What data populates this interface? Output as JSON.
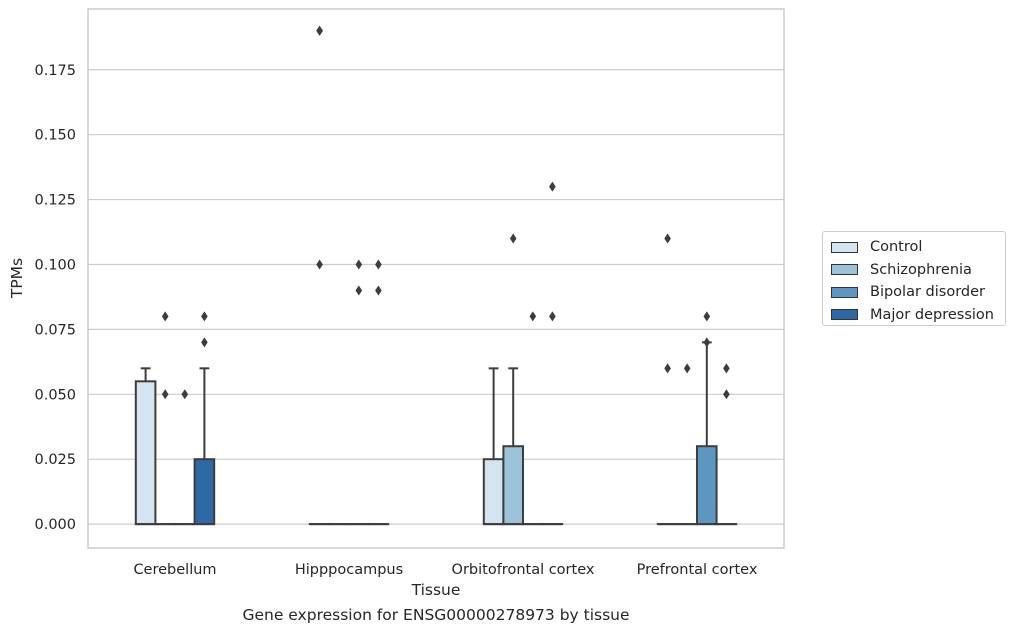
{
  "chart_data": {
    "type": "box",
    "caption": "Gene expression for ENSG00000278973 by tissue",
    "xlabel": "Tissue",
    "ylabel": "TPMs",
    "ylim": [
      -0.0092,
      0.1984
    ],
    "yticks": [
      "0.000",
      "0.025",
      "0.050",
      "0.075",
      "0.100",
      "0.125",
      "0.150",
      "0.175"
    ],
    "ytick_values": [
      0,
      0.025,
      0.05,
      0.075,
      0.1,
      0.125,
      0.15,
      0.175
    ],
    "grid": "horizontal",
    "legend_position": "center-right",
    "categories": [
      "Cerebellum",
      "Hipppocampus",
      "Orbitofrontal cortex",
      "Prefrontal cortex"
    ],
    "series": [
      {
        "name": "Control",
        "color": "#d4e4f1",
        "boxes": [
          {
            "q1": 0,
            "median": 0,
            "q3": 0.055,
            "whisker_low": 0,
            "whisker_high": 0.06,
            "outliers": []
          },
          {
            "q1": 0,
            "median": 0,
            "q3": 0,
            "whisker_low": 0,
            "whisker_high": 0,
            "outliers": [
              0.19,
              0.19,
              0.1
            ]
          },
          {
            "q1": 0,
            "median": 0,
            "q3": 0.025,
            "whisker_low": 0,
            "whisker_high": 0.06,
            "outliers": []
          },
          {
            "q1": 0,
            "median": 0,
            "q3": 0,
            "whisker_low": 0,
            "whisker_high": 0,
            "outliers": [
              0.11,
              0.06
            ]
          }
        ]
      },
      {
        "name": "Schizophrenia",
        "color": "#9bc2d8",
        "boxes": [
          {
            "q1": 0,
            "median": 0,
            "q3": 0,
            "whisker_low": 0,
            "whisker_high": 0,
            "outliers": [
              0.08,
              0.05
            ]
          },
          {
            "q1": 0,
            "median": 0,
            "q3": 0,
            "whisker_low": 0,
            "whisker_high": 0,
            "outliers": []
          },
          {
            "q1": 0,
            "median": 0,
            "q3": 0.03,
            "whisker_low": 0,
            "whisker_high": 0.06,
            "outliers": [
              0.11
            ]
          },
          {
            "q1": 0,
            "median": 0,
            "q3": 0,
            "whisker_low": 0,
            "whisker_high": 0,
            "outliers": []
          }
        ]
      },
      {
        "name": "Bipolar disorder",
        "color": "#5b97c0",
        "boxes": [
          {
            "q1": 0,
            "median": 0,
            "q3": 0,
            "whisker_low": 0,
            "whisker_high": 0,
            "outliers": [
              0.05
            ]
          },
          {
            "q1": 0,
            "median": 0,
            "q3": 0,
            "whisker_low": 0,
            "whisker_high": 0,
            "outliers": [
              0.09
            ]
          },
          {
            "q1": 0,
            "median": 0,
            "q3": 0,
            "whisker_low": 0,
            "whisker_high": 0,
            "outliers": [
              0.08
            ]
          },
          {
            "q1": 0,
            "median": 0,
            "q3": 0.03,
            "whisker_low": 0,
            "whisker_high": 0.07,
            "outliers": [
              0.08
            ]
          }
        ]
      },
      {
        "name": "Major depression",
        "color": "#2c6aa6",
        "boxes": [
          {
            "q1": 0,
            "median": 0,
            "q3": 0.025,
            "whisker_low": 0,
            "whisker_high": 0.06,
            "outliers": [
              0.08,
              0.07
            ]
          },
          {
            "q1": 0,
            "median": 0,
            "q3": 0,
            "whisker_low": 0,
            "whisker_high": 0,
            "outliers": [
              0.1,
              0.09
            ]
          },
          {
            "q1": 0,
            "median": 0,
            "q3": 0,
            "whisker_low": 0,
            "whisker_high": 0,
            "outliers": [
              0.13,
              0.08
            ]
          },
          {
            "q1": 0,
            "median": 0,
            "q3": 0,
            "whisker_low": 0,
            "whisker_high": 0,
            "outliers": [
              0.06,
              0.05
            ]
          }
        ]
      }
    ],
    "extra_outliers": [
      {
        "category": 2,
        "series": 3,
        "values": [
          0.1
        ]
      },
      {
        "category": 4,
        "series": 2,
        "values": [
          0.06
        ]
      },
      {
        "category": 4,
        "series": 3,
        "values": [
          0.07
        ]
      }
    ]
  }
}
